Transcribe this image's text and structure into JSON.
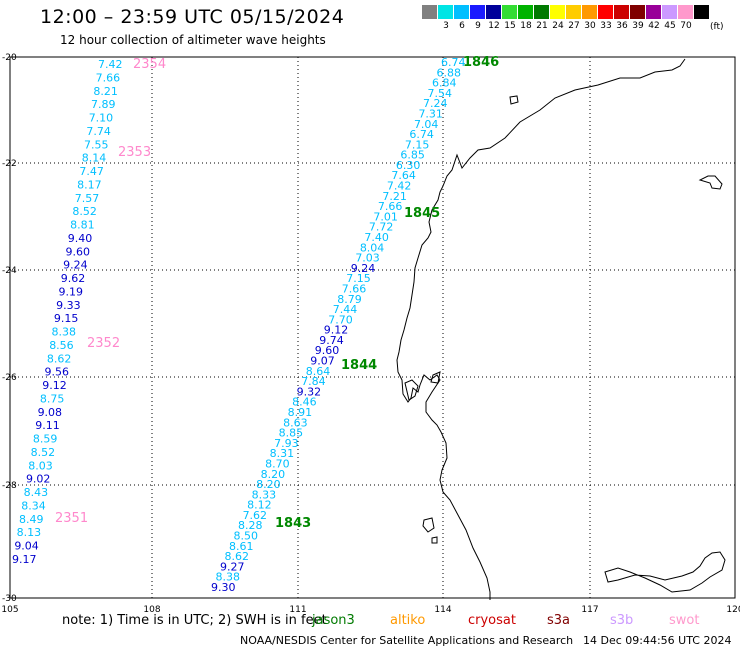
{
  "header": {
    "title": "12:00 – 23:59 UTC 05/15/2024",
    "subtitle": "12 hour collection of altimeter wave heights"
  },
  "scale": {
    "unit": "(ft)",
    "bins": [
      {
        "label": "",
        "color": "#808080"
      },
      {
        "label": "3",
        "color": "#00e5e5"
      },
      {
        "label": "6",
        "color": "#00bfff"
      },
      {
        "label": "9",
        "color": "#1a1aff"
      },
      {
        "label": "12",
        "color": "#00009a"
      },
      {
        "label": "15",
        "color": "#33dd33"
      },
      {
        "label": "18",
        "color": "#00b300"
      },
      {
        "label": "21",
        "color": "#007a00"
      },
      {
        "label": "24",
        "color": "#ffff00"
      },
      {
        "label": "27",
        "color": "#ffcc00"
      },
      {
        "label": "30",
        "color": "#ff9900"
      },
      {
        "label": "33",
        "color": "#ff0000"
      },
      {
        "label": "36",
        "color": "#cc0000"
      },
      {
        "label": "39",
        "color": "#800000"
      },
      {
        "label": "42",
        "color": "#990099"
      },
      {
        "label": "45",
        "color": "#cc99ff"
      },
      {
        "label": "70",
        "color": "#ff99cc"
      },
      {
        "label": "",
        "color": "#000000"
      }
    ]
  },
  "map": {
    "lon_ticks": [
      "105",
      "108",
      "111",
      "114",
      "117",
      "120"
    ],
    "lat_ticks": [
      "-20",
      "-22",
      "-24",
      "-26",
      "-28",
      "-30"
    ],
    "tracks": [
      {
        "name": "west",
        "values": [
          "7.42",
          "7.66",
          "8.21",
          "7.89",
          "7.10",
          "7.74",
          "7.55",
          "8.14",
          "7.47",
          "8.17",
          "7.57",
          "8.52",
          "8.81",
          "9.40",
          "9.60",
          "9.24",
          "9.62",
          "9.19",
          "9.33",
          "9.15",
          "8.38",
          "8.56",
          "8.62",
          "9.56",
          "9.12",
          "8.75",
          "9.08",
          "9.11",
          "8.59",
          "8.52",
          "8.03",
          "9.02",
          "8.43",
          "8.34",
          "8.49",
          "8.13",
          "9.04",
          "9.17"
        ],
        "colors": [
          "c",
          "c",
          "c",
          "c",
          "c",
          "c",
          "c",
          "c",
          "c",
          "c",
          "c",
          "c",
          "c",
          "b",
          "b",
          "b",
          "b",
          "b",
          "b",
          "b",
          "c",
          "c",
          "c",
          "b",
          "b",
          "c",
          "b",
          "b",
          "c",
          "c",
          "c",
          "b",
          "c",
          "c",
          "c",
          "c",
          "b",
          "b"
        ]
      },
      {
        "name": "east",
        "values": [
          "6.74",
          "6.88",
          "6.84",
          "7.54",
          "7.24",
          "7.31",
          "7.04",
          "6.74",
          "7.15",
          "6.85",
          "6.30",
          "7.64",
          "7.42",
          "7.21",
          "7.66",
          "7.01",
          "7.72",
          "7.40",
          "8.04",
          "7.03",
          "9.24",
          "7.15",
          "7.66",
          "8.79",
          "7.44",
          "7.70",
          "9.12",
          "9.74",
          "9.60",
          "9.07",
          "8.64",
          "7.84",
          "9.32",
          "8.46",
          "8.91",
          "8.63",
          "8.85",
          "7.93",
          "8.31",
          "8.70",
          "8.20",
          "8.20",
          "8.33",
          "8.12",
          "7.62",
          "8.28",
          "8.50",
          "8.61",
          "8.62",
          "9.27",
          "8.38",
          "9.30"
        ],
        "colors": [
          "c",
          "c",
          "c",
          "c",
          "c",
          "c",
          "c",
          "c",
          "c",
          "c",
          "c",
          "c",
          "c",
          "c",
          "c",
          "c",
          "c",
          "c",
          "c",
          "c",
          "b",
          "c",
          "c",
          "c",
          "c",
          "c",
          "b",
          "b",
          "b",
          "b",
          "c",
          "c",
          "b",
          "c",
          "c",
          "c",
          "c",
          "c",
          "c",
          "c",
          "c",
          "c",
          "c",
          "c",
          "c",
          "c",
          "c",
          "c",
          "c",
          "b",
          "c",
          "b"
        ]
      }
    ],
    "time_labels": [
      {
        "text": "2354",
        "color": "pink"
      },
      {
        "text": "2353",
        "color": "pink"
      },
      {
        "text": "2352",
        "color": "pink"
      },
      {
        "text": "2351",
        "color": "pink"
      },
      {
        "text": "1846",
        "color": "green"
      },
      {
        "text": "1845",
        "color": "green"
      },
      {
        "text": "1844",
        "color": "green"
      },
      {
        "text": "1843",
        "color": "green"
      }
    ],
    "track_colors": {
      "c": "#00bfff",
      "b": "#0000cc",
      "pink": "#ff88cc",
      "green": "#008800"
    }
  },
  "footer": {
    "note": "note:  1) Time is in UTC; 2) SWH is in feet",
    "satellites": [
      {
        "name": "jason3",
        "color": "#007a00"
      },
      {
        "name": "altiko",
        "color": "#ff9900"
      },
      {
        "name": "cryosat",
        "color": "#cc0000"
      },
      {
        "name": "s3a",
        "color": "#800000"
      },
      {
        "name": "s3b",
        "color": "#cc99ff"
      },
      {
        "name": "swot",
        "color": "#ff99cc"
      }
    ],
    "credit": "NOAA/NESDIS Center for Satellite Applications and Research",
    "timestamp": "14 Dec 09:44:56 UTC 2024"
  }
}
